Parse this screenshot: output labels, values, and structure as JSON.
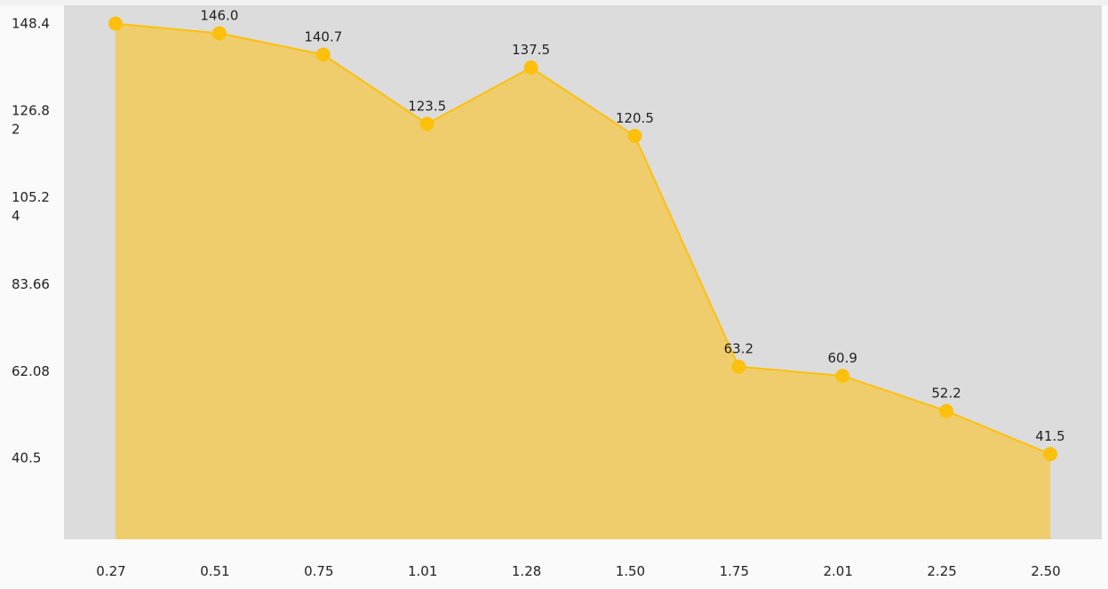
{
  "chart_data": {
    "type": "area",
    "title": "",
    "xlabel": "",
    "ylabel": "",
    "x": [
      "0.27",
      "0.51",
      "0.75",
      "1.01",
      "1.28",
      "1.50",
      "1.75",
      "2.01",
      "2.25",
      "2.50"
    ],
    "series": [
      {
        "values": [
          148.4,
          146.0,
          140.7,
          123.5,
          137.5,
          120.5,
          63.2,
          60.9,
          52.2,
          41.5
        ]
      }
    ],
    "data_labels": [
      "",
      "146.0",
      "140.7",
      "123.5",
      "137.5",
      "120.5",
      "63.2",
      "60.9",
      "52.2",
      "41.5"
    ],
    "y_ticks": [
      {
        "value": 148.4,
        "lines": [
          "148.4"
        ]
      },
      {
        "value": 126.82,
        "lines": [
          "126.8",
          "2"
        ]
      },
      {
        "value": 105.24,
        "lines": [
          "105.2",
          "4"
        ]
      },
      {
        "value": 83.66,
        "lines": [
          "83.66"
        ]
      },
      {
        "value": 62.08,
        "lines": [
          "62.08"
        ]
      },
      {
        "value": 40.5,
        "lines": [
          "40.5"
        ]
      }
    ],
    "ylim": [
      20.33,
      152.94
    ],
    "grid": false,
    "colors": {
      "plot_background": "#dcdcdc",
      "area_fill": "#efcd6c",
      "line": "#fcc00d",
      "point": "#fcc00d",
      "text": "#222222"
    }
  }
}
